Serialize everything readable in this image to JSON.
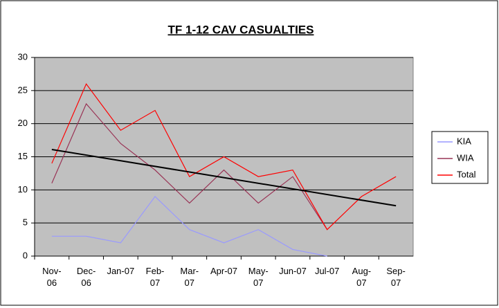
{
  "chart_data": {
    "type": "line",
    "title": "TF 1-12 CAV CASUALTIES",
    "categories": [
      "Nov-06",
      "Dec-06",
      "Jan-07",
      "Feb-07",
      "Mar-07",
      "Apr-07",
      "May-07",
      "Jun-07",
      "Jul-07",
      "Aug-07",
      "Sep-07"
    ],
    "series": [
      {
        "name": "KIA",
        "color": "#9999ff",
        "values": [
          3,
          3,
          2,
          9,
          4,
          2,
          4,
          1,
          0,
          null,
          null
        ]
      },
      {
        "name": "WIA",
        "color": "#993355",
        "values": [
          11,
          23,
          17,
          13,
          8,
          13,
          8,
          12,
          4,
          null,
          null
        ]
      },
      {
        "name": "Total",
        "color": "#ff0000",
        "values": [
          14,
          26,
          19,
          22,
          12,
          15,
          12,
          13,
          4,
          9,
          12
        ]
      }
    ],
    "trendline": {
      "color": "#000000",
      "values": [
        16.1,
        7.6
      ]
    },
    "ylim": [
      0,
      30
    ],
    "yticks": [
      0,
      5,
      10,
      15,
      20,
      25,
      30
    ],
    "grid": true,
    "legend": "right"
  }
}
